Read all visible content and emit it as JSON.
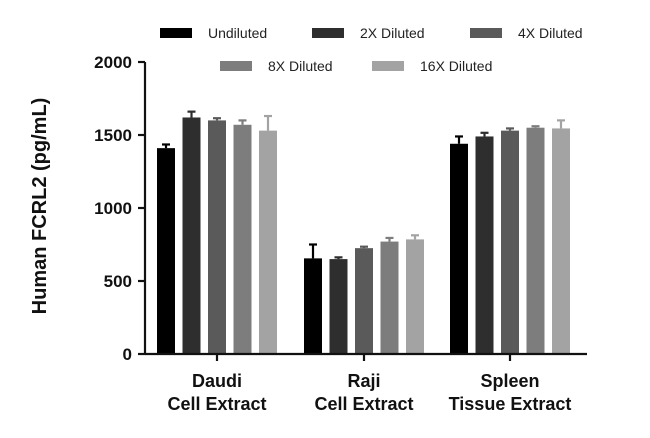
{
  "chart_data": {
    "type": "bar",
    "ylabel": "Human FCRL2 (pg/mL)",
    "xlabel": "",
    "ylim": [
      0,
      2000
    ],
    "yticks": [
      "0",
      "500",
      "1000",
      "1500",
      "2000"
    ],
    "categories": [
      [
        "Daudi",
        "Cell Extract"
      ],
      [
        "Raji",
        "Cell Extract"
      ],
      [
        "Spleen",
        "Tissue Extract"
      ]
    ],
    "legend_position": "top",
    "grid": false,
    "series": [
      {
        "name": "Undiluted",
        "color": "#000000",
        "values": [
          1410,
          655,
          1440
        ],
        "errors": [
          25,
          95,
          50
        ]
      },
      {
        "name": "2X Diluted",
        "color": "#2e2e2e",
        "values": [
          1620,
          650,
          1490
        ],
        "errors": [
          40,
          12,
          25
        ]
      },
      {
        "name": "4X Diluted",
        "color": "#5a5a5a",
        "values": [
          1600,
          725,
          1530
        ],
        "errors": [
          15,
          10,
          15
        ]
      },
      {
        "name": "8X Diluted",
        "color": "#7d7d7d",
        "values": [
          1570,
          770,
          1550
        ],
        "errors": [
          30,
          25,
          10
        ]
      },
      {
        "name": "16X Diluted",
        "color": "#a3a3a3",
        "values": [
          1530,
          785,
          1545
        ],
        "errors": [
          100,
          28,
          55
        ]
      }
    ]
  }
}
